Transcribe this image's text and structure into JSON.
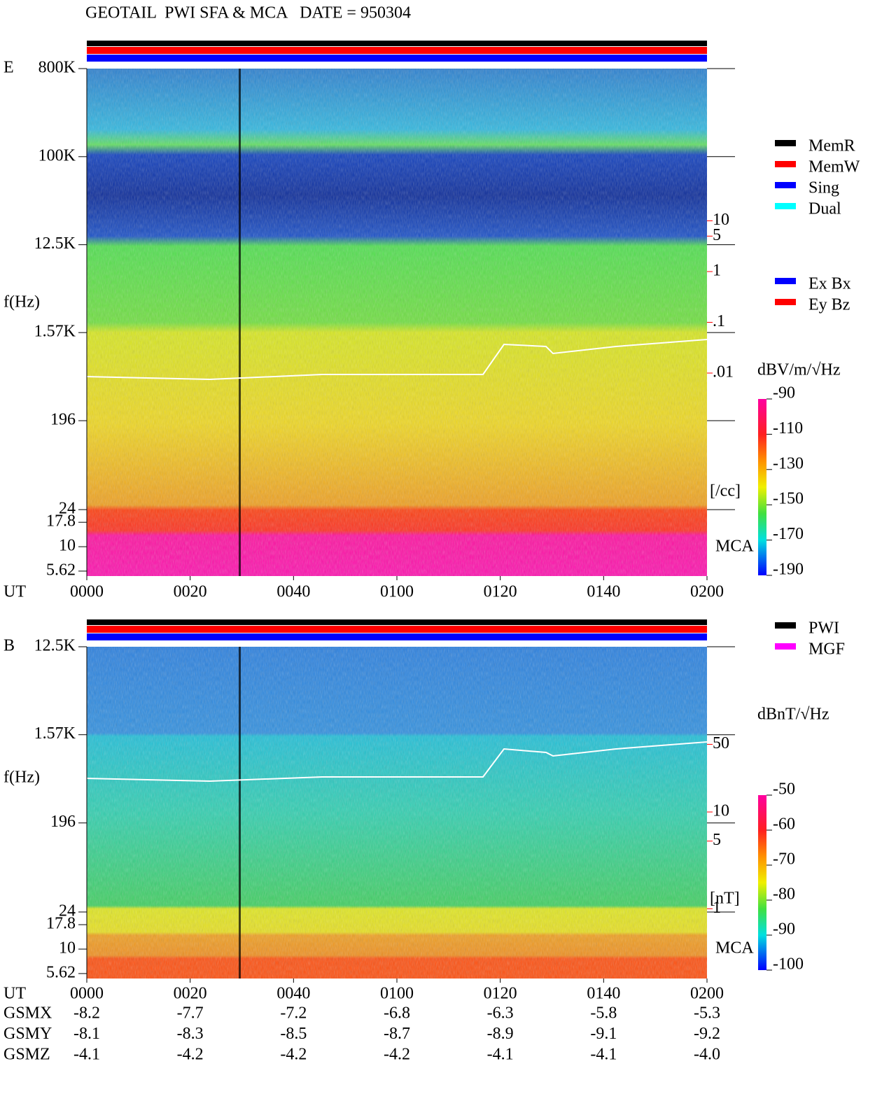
{
  "title": "GEOTAIL  PWI SFA & MCA   DATE = 950304",
  "chart_data": [
    {
      "type": "spectrogram",
      "panel_label": "E",
      "ylabel": "f(Hz)",
      "xlabel": "UT",
      "band_label": "MCA",
      "log_y": true,
      "ylim": [
        5,
        800000
      ],
      "yticks": [
        {
          "value": 800000,
          "label": "800K"
        },
        {
          "value": 100000,
          "label": "100K"
        },
        {
          "value": 12500,
          "label": "12.5K"
        },
        {
          "value": 1570,
          "label": "1.57K"
        },
        196,
        24,
        17.8,
        10,
        5.62
      ],
      "xlim": [
        0,
        120
      ],
      "xticks": [
        {
          "value": 0,
          "label": "0000"
        },
        {
          "value": 20,
          "label": "0020"
        },
        {
          "value": 40,
          "label": "0040"
        },
        {
          "value": 60,
          "label": "0100"
        },
        {
          "value": 80,
          "label": "0120"
        },
        {
          "value": 100,
          "label": "0140"
        },
        {
          "value": 120,
          "label": "0200"
        }
      ],
      "y2lim": [
        1e-06,
        10000
      ],
      "log_y2": true,
      "y2ticks": [
        10,
        5,
        1,
        {
          "value": 0.1,
          "label": ".1"
        },
        {
          "value": 0.01,
          "label": ".01"
        }
      ],
      "y2label": "[/cc]",
      "y2color": "#ff0000",
      "colorbar": {
        "label": "dBV/m/√Hz",
        "lim": [
          -190,
          -90
        ],
        "ticks": [
          -90,
          -110,
          -130,
          -150,
          -170,
          -190
        ]
      },
      "legend": [
        {
          "name": "MemR",
          "color": "#000000"
        },
        {
          "name": "MemW",
          "color": "#ff0000"
        },
        {
          "name": "Sing",
          "color": "#0000ff"
        },
        {
          "name": "Dual",
          "color": "#00ffff"
        }
      ],
      "legend2": [
        {
          "name": "Ex Bx",
          "color": "#0000ff"
        },
        {
          "name": "Ey Bz",
          "color": "#ff0000"
        }
      ]
    },
    {
      "type": "spectrogram",
      "panel_label": "B",
      "ylabel": "f(Hz)",
      "xlabel": "UT",
      "band_label": "MCA",
      "log_y": true,
      "ylim": [
        5,
        12500
      ],
      "yticks": [
        {
          "value": 12500,
          "label": "12.5K"
        },
        {
          "value": 1570,
          "label": "1.57K"
        },
        196,
        24,
        17.8,
        10,
        5.62
      ],
      "xlim": [
        0,
        120
      ],
      "xticks": [
        {
          "value": 0,
          "label": "0000"
        },
        {
          "value": 20,
          "label": "0020"
        },
        {
          "value": 40,
          "label": "0040"
        },
        {
          "value": 60,
          "label": "0100"
        },
        {
          "value": 80,
          "label": "0120"
        },
        {
          "value": 100,
          "label": "0140"
        },
        {
          "value": 120,
          "label": "0200"
        }
      ],
      "y2lim": [
        0.19,
        510
      ],
      "log_y2": true,
      "y2ticks": [
        50,
        10,
        5,
        1
      ],
      "y2label": "[nT]",
      "y2color": "#ff0000",
      "colorbar": {
        "label": "dBnT/√Hz",
        "lim": [
          -100,
          -50
        ],
        "ticks": [
          -50,
          -60,
          -70,
          -80,
          -90,
          -100
        ]
      },
      "legend": [
        {
          "name": "PWI",
          "color": "#000000"
        },
        {
          "name": "MGF",
          "color": "#ff00ff"
        }
      ]
    }
  ],
  "orbit": {
    "rows": [
      {
        "name": "GSMX",
        "values": [
          "-8.2",
          "-7.7",
          "-7.2",
          "-6.8",
          "-6.3",
          "-5.8",
          "-5.3"
        ]
      },
      {
        "name": "GSMY",
        "values": [
          "-8.1",
          "-8.3",
          "-8.5",
          "-8.7",
          "-8.9",
          "-9.1",
          "-9.2"
        ]
      },
      {
        "name": "GSMZ",
        "values": [
          "-4.1",
          "-4.2",
          "-4.2",
          "-4.2",
          "-4.1",
          "-4.1",
          "-4.0"
        ]
      }
    ]
  }
}
